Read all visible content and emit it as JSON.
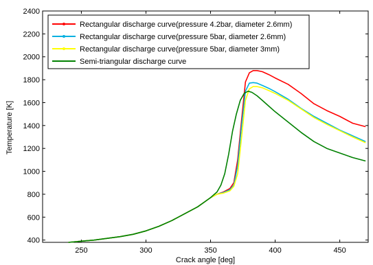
{
  "chart_data": {
    "type": "line",
    "title": "",
    "xlabel": "Crack angle [deg]",
    "ylabel": "Temperature [K]",
    "xlim": [
      220,
      472
    ],
    "ylim": [
      380,
      2400
    ],
    "xticks": [
      250,
      300,
      350,
      400,
      450
    ],
    "yticks": [
      400,
      600,
      800,
      1000,
      1200,
      1400,
      1600,
      1800,
      2000,
      2200,
      2400
    ],
    "grid": false,
    "legend_position": "top-left",
    "series": [
      {
        "name": "Rectangular discharge curve(pressure 4.2bar, diameter 2.6mm)",
        "color": "#ff0000",
        "x": [
          240,
          250,
          260,
          270,
          280,
          290,
          300,
          310,
          320,
          330,
          340,
          345,
          350,
          355,
          360,
          365,
          368,
          371,
          374,
          377,
          380,
          383,
          386,
          390,
          395,
          400,
          410,
          420,
          430,
          440,
          450,
          460,
          470
        ],
        "y": [
          380,
          390,
          400,
          415,
          430,
          450,
          480,
          520,
          570,
          630,
          690,
          730,
          770,
          800,
          820,
          850,
          900,
          1100,
          1450,
          1780,
          1860,
          1880,
          1880,
          1870,
          1845,
          1815,
          1760,
          1680,
          1590,
          1530,
          1480,
          1420,
          1390
        ]
      },
      {
        "name": "Rectangular discharge curve(pressure 5bar, diameter 2.6mm)",
        "color": "#00b0e0",
        "x": [
          240,
          250,
          260,
          270,
          280,
          290,
          300,
          310,
          320,
          330,
          340,
          345,
          350,
          355,
          360,
          365,
          368,
          371,
          374,
          377,
          380,
          383,
          386,
          390,
          395,
          400,
          410,
          420,
          430,
          440,
          450,
          460,
          470
        ],
        "y": [
          380,
          390,
          400,
          415,
          430,
          450,
          480,
          520,
          570,
          630,
          690,
          730,
          770,
          800,
          815,
          840,
          880,
          1050,
          1400,
          1700,
          1770,
          1775,
          1770,
          1750,
          1725,
          1695,
          1630,
          1550,
          1480,
          1420,
          1360,
          1310,
          1260
        ]
      },
      {
        "name": "Rectangular discharge curve(pressure 5bar, diameter 3mm)",
        "color": "#ffff00",
        "x": [
          240,
          250,
          260,
          270,
          280,
          290,
          300,
          310,
          320,
          330,
          340,
          345,
          350,
          355,
          360,
          365,
          368,
          371,
          374,
          377,
          380,
          383,
          386,
          390,
          395,
          400,
          410,
          420,
          430,
          440,
          450,
          460,
          470
        ],
        "y": [
          380,
          390,
          400,
          415,
          430,
          450,
          480,
          520,
          570,
          630,
          690,
          730,
          770,
          800,
          810,
          830,
          870,
          980,
          1300,
          1620,
          1720,
          1740,
          1740,
          1730,
          1705,
          1680,
          1620,
          1545,
          1470,
          1410,
          1355,
          1300,
          1250
        ]
      },
      {
        "name": "Semi-triangular discharge curve",
        "color": "#008000",
        "x": [
          240,
          250,
          260,
          270,
          280,
          290,
          300,
          310,
          320,
          330,
          340,
          345,
          350,
          355,
          358,
          361,
          364,
          367,
          370,
          373,
          376,
          379,
          382,
          386,
          390,
          395,
          400,
          410,
          420,
          430,
          440,
          450,
          460,
          470
        ],
        "y": [
          380,
          390,
          400,
          415,
          430,
          450,
          480,
          520,
          570,
          630,
          690,
          730,
          770,
          820,
          880,
          980,
          1150,
          1350,
          1500,
          1620,
          1680,
          1700,
          1690,
          1660,
          1620,
          1570,
          1520,
          1430,
          1340,
          1260,
          1200,
          1160,
          1120,
          1090
        ]
      }
    ]
  }
}
